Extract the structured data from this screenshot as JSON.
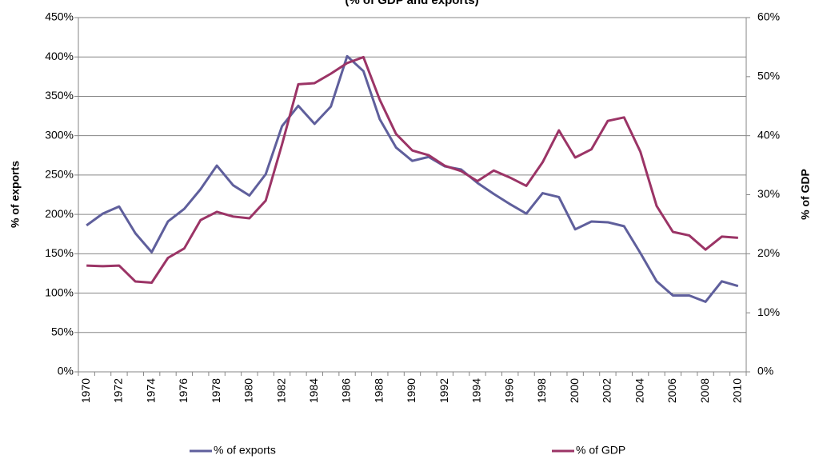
{
  "chart_data": {
    "type": "line",
    "title": "(% of GDP and exports)",
    "y_label": "% of exports",
    "y2_label": "% of GDP",
    "categories": [
      "1970",
      null,
      "1972",
      null,
      "1974",
      null,
      "1976",
      null,
      "1978",
      null,
      "1980",
      null,
      "1982",
      null,
      "1984",
      null,
      "1986",
      null,
      "1988",
      null,
      "1990",
      null,
      "1992",
      null,
      "1994",
      null,
      "1996",
      null,
      "1998",
      null,
      "2000",
      null,
      "2002",
      null,
      "2004",
      null,
      "2006",
      null,
      "2008",
      null,
      "2010"
    ],
    "ylim": [
      0,
      450
    ],
    "yticks": [
      {
        "value": 0,
        "label": "0%"
      },
      {
        "value": 50,
        "label": "50%"
      },
      {
        "value": 100,
        "label": "100%"
      },
      {
        "value": 150,
        "label": "150%"
      },
      {
        "value": 200,
        "label": "200%"
      },
      {
        "value": 250,
        "label": "250%"
      },
      {
        "value": 300,
        "label": "300%"
      },
      {
        "value": 350,
        "label": "350%"
      },
      {
        "value": 400,
        "label": "400%"
      },
      {
        "value": 450,
        "label": "450%"
      }
    ],
    "y2lim": [
      0,
      60
    ],
    "y2ticks": [
      {
        "value": 0,
        "label": "0%"
      },
      {
        "value": 10,
        "label": "10%"
      },
      {
        "value": 20,
        "label": "20%"
      },
      {
        "value": 30,
        "label": "30%"
      },
      {
        "value": 40,
        "label": "40%"
      },
      {
        "value": 50,
        "label": "50%"
      },
      {
        "value": 60,
        "label": "60%"
      }
    ],
    "grid": true,
    "legend": "bottom",
    "series": [
      {
        "name": "% of exports",
        "color": "#5f5f9c",
        "axis": "y",
        "values": [
          186,
          201,
          210,
          176,
          152,
          191,
          207,
          232,
          262,
          237,
          224,
          251,
          312,
          338,
          315,
          337,
          401,
          382,
          321,
          285,
          268,
          273,
          261,
          257,
          240,
          226,
          213,
          201,
          227,
          222,
          181,
          191,
          190,
          185,
          151,
          115,
          97,
          97,
          89,
          115,
          109
        ]
      },
      {
        "name": "% of GDP",
        "color": "#9b3466",
        "axis": "y2",
        "values": [
          18.0,
          17.9,
          18.0,
          15.3,
          15.1,
          19.3,
          20.9,
          25.7,
          27.1,
          26.3,
          26.0,
          29.0,
          38.5,
          48.7,
          48.9,
          50.5,
          52.3,
          53.3,
          46.1,
          40.3,
          37.5,
          36.7,
          34.9,
          34.0,
          32.3,
          34.1,
          32.9,
          31.5,
          35.5,
          40.9,
          36.3,
          37.7,
          42.5,
          43.1,
          37.3,
          28.1,
          23.7,
          23.1,
          20.7,
          22.9,
          22.7
        ]
      }
    ]
  }
}
